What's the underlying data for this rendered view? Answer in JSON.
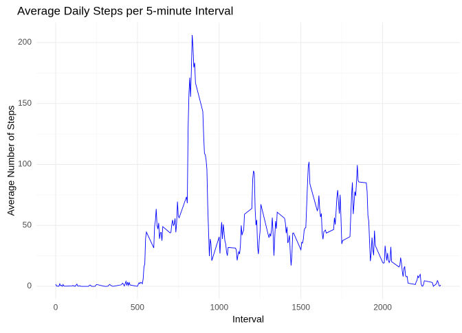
{
  "chart_data": {
    "type": "line",
    "title": "Average Daily Steps per 5-minute Interval",
    "x_label": "Interval",
    "y_label": "Average Number of Steps",
    "x": [
      0,
      5,
      10,
      15,
      20,
      25,
      30,
      35,
      40,
      45,
      50,
      55,
      100,
      105,
      110,
      115,
      120,
      125,
      130,
      135,
      140,
      145,
      150,
      155,
      200,
      210,
      220,
      230,
      240,
      250,
      300,
      310,
      320,
      330,
      340,
      350,
      400,
      410,
      420,
      430,
      435,
      440,
      445,
      450,
      455,
      500,
      505,
      510,
      515,
      520,
      525,
      530,
      535,
      540,
      545,
      550,
      555,
      600,
      605,
      610,
      615,
      620,
      625,
      630,
      635,
      640,
      645,
      650,
      655,
      700,
      705,
      710,
      715,
      720,
      725,
      730,
      735,
      740,
      745,
      750,
      755,
      800,
      805,
      810,
      815,
      820,
      825,
      830,
      835,
      840,
      845,
      850,
      855,
      900,
      905,
      910,
      915,
      920,
      925,
      930,
      935,
      940,
      945,
      950,
      955,
      1000,
      1005,
      1010,
      1015,
      1020,
      1025,
      1030,
      1035,
      1040,
      1045,
      1050,
      1055,
      1100,
      1105,
      1110,
      1115,
      1120,
      1125,
      1130,
      1135,
      1140,
      1145,
      1150,
      1155,
      1200,
      1205,
      1210,
      1215,
      1220,
      1225,
      1230,
      1235,
      1240,
      1245,
      1250,
      1255,
      1300,
      1305,
      1310,
      1315,
      1320,
      1325,
      1330,
      1335,
      1340,
      1345,
      1350,
      1355,
      1400,
      1405,
      1410,
      1415,
      1420,
      1425,
      1430,
      1435,
      1440,
      1445,
      1450,
      1455,
      1500,
      1505,
      1510,
      1515,
      1520,
      1525,
      1530,
      1535,
      1540,
      1545,
      1550,
      1555,
      1600,
      1605,
      1610,
      1615,
      1620,
      1625,
      1630,
      1635,
      1640,
      1645,
      1650,
      1655,
      1700,
      1705,
      1710,
      1715,
      1720,
      1725,
      1730,
      1735,
      1740,
      1745,
      1750,
      1755,
      1800,
      1805,
      1810,
      1815,
      1820,
      1825,
      1830,
      1835,
      1840,
      1845,
      1850,
      1855,
      1900,
      1905,
      1910,
      1915,
      1920,
      1925,
      1930,
      1935,
      1940,
      1945,
      1950,
      1955,
      2000,
      2005,
      2010,
      2015,
      2020,
      2025,
      2030,
      2035,
      2040,
      2045,
      2050,
      2055,
      2100,
      2105,
      2110,
      2115,
      2120,
      2125,
      2130,
      2135,
      2140,
      2145,
      2150,
      2155,
      2200,
      2205,
      2210,
      2215,
      2220,
      2225,
      2230,
      2235,
      2240,
      2245,
      2250,
      2255,
      2300,
      2305,
      2310,
      2315,
      2320,
      2325,
      2330,
      2335,
      2340,
      2345,
      2350,
      2355
    ],
    "series": [
      {
        "color": "#0000ff",
        "values": [
          1.7,
          0.3,
          0.1,
          0.2,
          0.1,
          2.1,
          0.5,
          0.9,
          0,
          1.5,
          0.3,
          0.1,
          0.3,
          0.7,
          0.2,
          0.3,
          0,
          1.1,
          1.8,
          0.2,
          0.2,
          0.4,
          0.3,
          0,
          0,
          1.1,
          0,
          0,
          0,
          1.5,
          0,
          0,
          0.2,
          1.6,
          0.5,
          0,
          1.2,
          2.6,
          0.3,
          4.1,
          0.7,
          3.5,
          0.8,
          3.1,
          1.1,
          0,
          1.6,
          3,
          2.2,
          3.3,
          3,
          2.1,
          6,
          16,
          18.3,
          39.5,
          44.5,
          31.5,
          49.3,
          53.8,
          63.5,
          50,
          47,
          52,
          39,
          44,
          44.2,
          37.4,
          49,
          43.8,
          44.4,
          50.5,
          54.5,
          49.9,
          51,
          55.7,
          44.3,
          52.3,
          69.5,
          57.8,
          56.2,
          73.4,
          68.2,
          129.4,
          157.5,
          171.2,
          155.4,
          177.3,
          206.2,
          195.9,
          179.6,
          183.4,
          167,
          143.5,
          124,
          109,
          108,
          103.7,
          95.9,
          66.2,
          45.2,
          24.8,
          38.8,
          35,
          21.1,
          40.6,
          27,
          42.4,
          52.7,
          38.9,
          50.8,
          44.3,
          37.4,
          34.7,
          28.3,
          25.1,
          31.9,
          31.4,
          29.7,
          21.3,
          25.5,
          28.4,
          26.5,
          33.4,
          50,
          42,
          44.6,
          46,
          59.2,
          63.9,
          87.7,
          94.8,
          92.8,
          63.4,
          50.2,
          54.5,
          32.4,
          26.5,
          37.7,
          45.1,
          67.3,
          42.3,
          39.9,
          43.3,
          41,
          46.2,
          56.4,
          42.8,
          25.1,
          40,
          53.5,
          47.3,
          60.8,
          55.8,
          52,
          43.6,
          48.7,
          35.5,
          37.5,
          41.8,
          27.5,
          17.1,
          26.1,
          43.6,
          43.8,
          30,
          36.1,
          35.5,
          38.8,
          46,
          47.8,
          48.1,
          65.3,
          82.9,
          98.7,
          102.1,
          84,
          62.1,
          64.1,
          74.5,
          63.2,
          56.9,
          59.8,
          43.9,
          38.6,
          44.7,
          45.5,
          46.2,
          43.7,
          46.6,
          56.3,
          50.7,
          61.2,
          72.7,
          78.9,
          68.9,
          59.7,
          75.1,
          56.5,
          34.8,
          37.5,
          40.7,
          58,
          74.7,
          85.3,
          59.3,
          67.8,
          77.7,
          74.2,
          85.3,
          99.5,
          86.6,
          85.6,
          84.9,
          77.8,
          58,
          53.4,
          36.3,
          20.7,
          27.4,
          40,
          30.2,
          25.5,
          45.7,
          33.5,
          19.6,
          19,
          19.3,
          33.3,
          26.8,
          21.2,
          27.3,
          21.3,
          19.5,
          21.3,
          32.3,
          20.2,
          15.9,
          17.2,
          23.5,
          19.2,
          12.5,
          8,
          14.7,
          16.3,
          8.7,
          7.8,
          8.1,
          2.6,
          1.5,
          3.7,
          4.8,
          8.5,
          7.1,
          8.7,
          9.8,
          2.2,
          0.3,
          0.1,
          1.6,
          4.6,
          3.3,
          2.8,
          0,
          0.8,
          1,
          1.6,
          2.6,
          4.7,
          3.3,
          0.6,
          0.2,
          1.1
        ]
      }
    ],
    "xlim": [
      -117.75,
      2472.75
    ],
    "xticks": [
      0,
      500,
      1000,
      1500,
      2000
    ],
    "ylim": [
      -10.3,
      216.5
    ],
    "yticks": [
      0,
      50,
      100,
      150,
      200
    ],
    "grid": true,
    "minor_grid": true
  }
}
